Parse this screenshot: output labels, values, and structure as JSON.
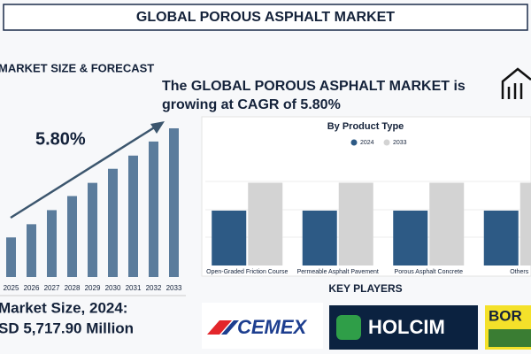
{
  "title": "GLOBAL POROUS ASPHALT MARKET",
  "section_title": "MARKET SIZE & FORECAST",
  "headline": [
    "The GLOBAL POROUS ASPHALT MARKET is",
    "growing at CAGR of 5.80%"
  ],
  "cagr": "5.80%",
  "market_size_label": "Market Size, 2024:",
  "market_size_value": "SD 5,717.90 Million",
  "key_players_title": "KEY PLAYERS",
  "key_players": [
    "CEMEX",
    "HOLCIM",
    "BOR"
  ],
  "chart_data": [
    {
      "type": "bar",
      "categories": [
        "2025",
        "2026",
        "2027",
        "2028",
        "2029",
        "2030",
        "2031",
        "2032",
        "2033"
      ],
      "values": [
        45,
        60,
        76,
        92,
        107,
        123,
        138,
        154,
        169
      ],
      "color": "#5b7c9c",
      "ylim": [
        0,
        170
      ]
    },
    {
      "type": "bar",
      "title": "By Product Type",
      "categories": [
        "Open-Graded Friction Course",
        "Permeable Asphalt Pavement",
        "Porous Asphalt Concrete",
        "Others"
      ],
      "series": [
        {
          "name": "2024",
          "color": "#2d5a85",
          "values": [
            63,
            63,
            63,
            63
          ]
        },
        {
          "name": "2033",
          "color": "#d3d3d3",
          "values": [
            95,
            95,
            95,
            95
          ]
        }
      ],
      "ylim": [
        0,
        130
      ]
    }
  ]
}
